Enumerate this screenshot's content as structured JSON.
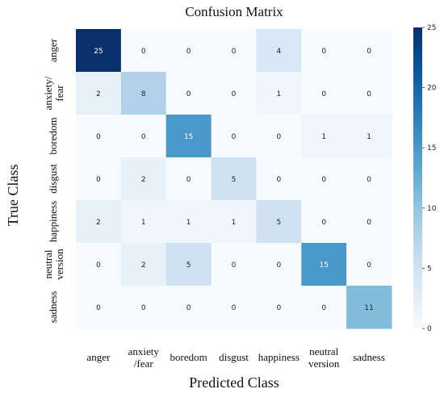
{
  "chart_data": {
    "type": "heatmap",
    "title": "Confusion Matrix",
    "xlabel": "Predicted Class",
    "ylabel": "True Class",
    "x_categories": [
      [
        "anger"
      ],
      [
        "anxiety",
        "/fear"
      ],
      [
        "boredom"
      ],
      [
        "disgust"
      ],
      [
        "happiness"
      ],
      [
        "neutral",
        "version"
      ],
      [
        "sadness"
      ]
    ],
    "y_categories": [
      [
        "anger"
      ],
      [
        "anxiety/",
        "fear"
      ],
      [
        "boredom"
      ],
      [
        "disgust"
      ],
      [
        "happiness"
      ],
      [
        "neutral",
        "version"
      ],
      [
        "sadness"
      ]
    ],
    "matrix": [
      [
        25,
        0,
        0,
        0,
        4,
        0,
        0
      ],
      [
        2,
        8,
        0,
        0,
        1,
        0,
        0
      ],
      [
        0,
        0,
        15,
        0,
        0,
        1,
        1
      ],
      [
        0,
        2,
        0,
        5,
        0,
        0,
        0
      ],
      [
        2,
        1,
        1,
        1,
        5,
        0,
        0
      ],
      [
        0,
        2,
        5,
        0,
        0,
        15,
        0
      ],
      [
        0,
        0,
        0,
        0,
        0,
        0,
        11
      ]
    ],
    "colorbar": {
      "range": [
        0,
        25
      ],
      "ticks": [
        0,
        5,
        10,
        15,
        20,
        25
      ]
    },
    "colormap": [
      "#f7fbff",
      "#deebf7",
      "#c6dbef",
      "#9ecae1",
      "#6baed6",
      "#4292c6",
      "#2171b5",
      "#08519c",
      "#08306b"
    ],
    "grid": false,
    "legend": "none"
  }
}
